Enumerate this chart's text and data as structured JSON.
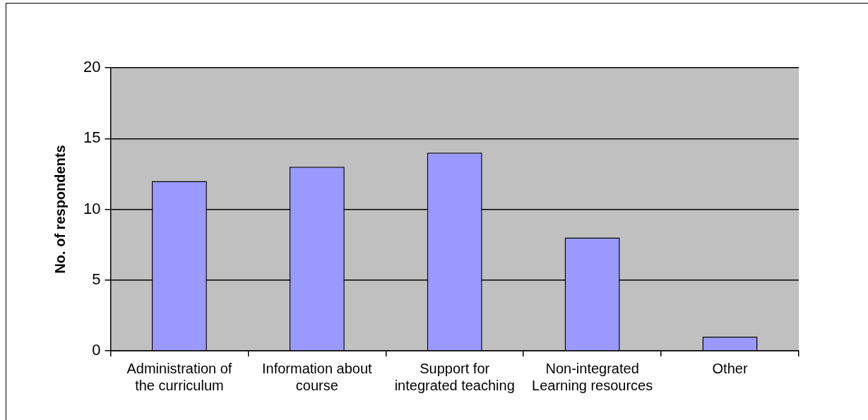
{
  "chart_data": {
    "type": "bar",
    "ylabel": "No. of respondents",
    "categories": [
      "Administration of the curriculum",
      "Information about course",
      "Support for integrated teaching",
      "Non-integrated Learning resources",
      "Other"
    ],
    "values": [
      12,
      13,
      14,
      8,
      1
    ],
    "color": "#9999ff",
    "ylim": [
      0,
      20
    ],
    "yticks": [
      0,
      5,
      10,
      15,
      20
    ],
    "grid": "y",
    "legend": false
  }
}
